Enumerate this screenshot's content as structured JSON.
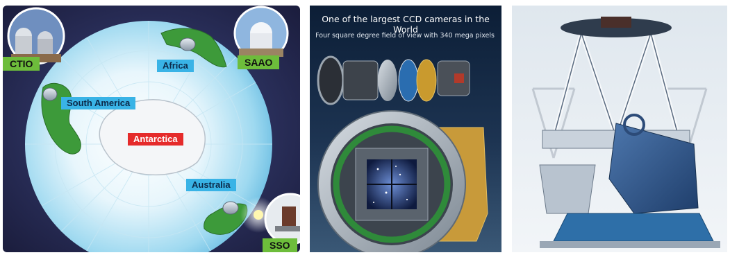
{
  "map_panel": {
    "sites": {
      "ctio": "CTIO",
      "saao": "SAAO",
      "sso": "SSO"
    },
    "continents": {
      "africa": "Africa",
      "south_america": "South America",
      "antarctica": "Antarctica",
      "australia": "Australia"
    },
    "colors": {
      "ocean": "#7fd0ee",
      "land": "#3d9a3a",
      "antarctica": "#f4f6f8",
      "background": "#2a2f5a"
    }
  },
  "camera_panel": {
    "title": "One of the largest CCD cameras in the World",
    "subtitle": "Four square degree field of view with 340 mega pixels"
  },
  "telescope_panel": {}
}
